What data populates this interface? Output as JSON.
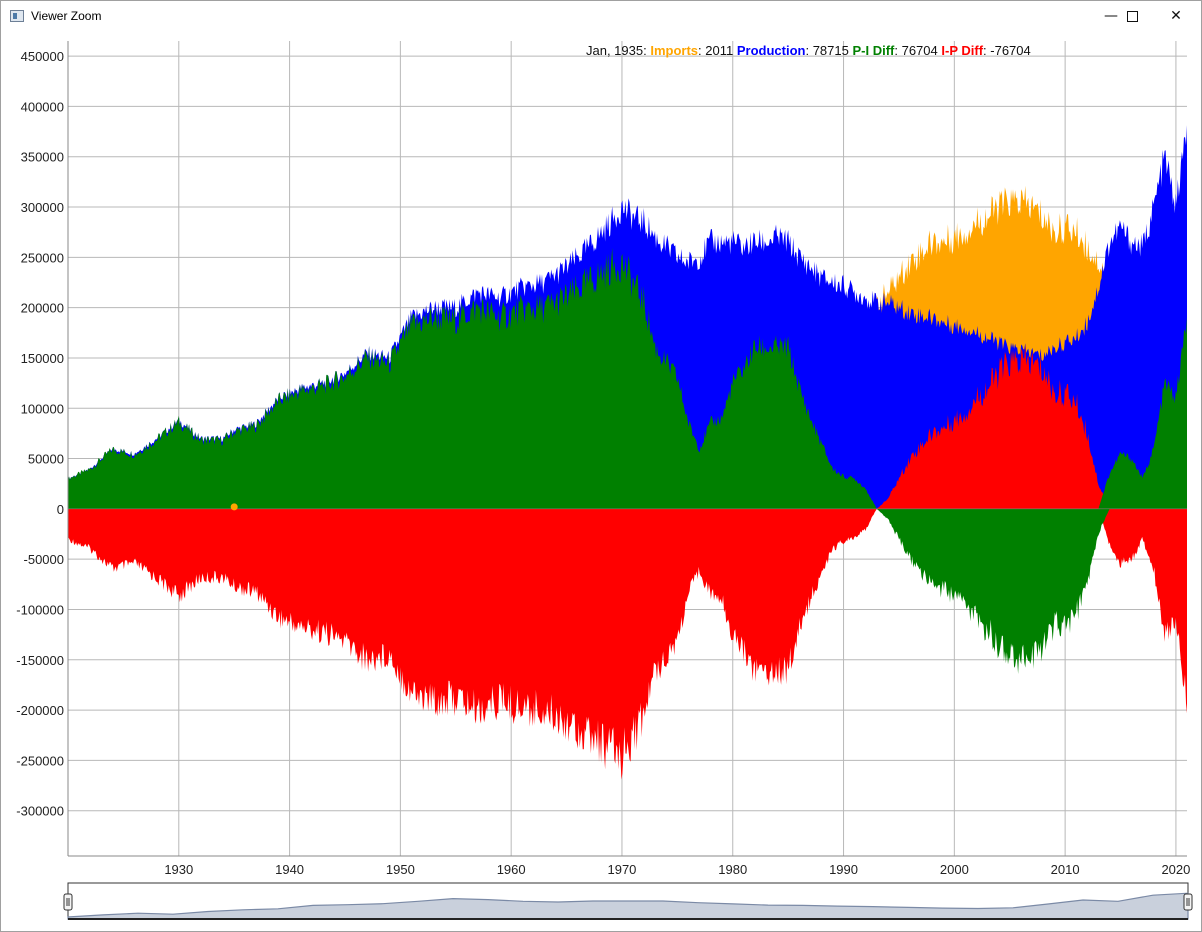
{
  "window": {
    "title": "Viewer Zoom"
  },
  "readout": {
    "date": "Jan, 1935",
    "imports_label": "Imports",
    "imports_value": "2011",
    "production_label": "Production",
    "production_value": "78715",
    "pi_label": "P-I Diff",
    "pi_value": "76704",
    "ip_label": "I-P Diff",
    "ip_value": "-76704"
  },
  "colors": {
    "imports": "#ffa500",
    "production": "#0000ff",
    "pi_diff": "#008000",
    "ip_diff": "#ff0000",
    "grid": "#b8b8b8",
    "overview_fill": "#c9d0dc",
    "overview_line": "#7b8aa6"
  },
  "chart_data": {
    "type": "area",
    "title": "",
    "xlabel": "",
    "ylabel": "",
    "xlim": [
      1920,
      2021
    ],
    "ylim": [
      -345000,
      465000
    ],
    "y_ticks": [
      450000,
      400000,
      350000,
      300000,
      250000,
      200000,
      150000,
      100000,
      50000,
      0,
      -50000,
      -100000,
      -150000,
      -200000,
      -250000,
      -300000
    ],
    "x_ticks": [
      1930,
      1940,
      1950,
      1960,
      1970,
      1980,
      1990,
      2000,
      2010,
      2020
    ],
    "grid": true,
    "x": [
      1920,
      1922,
      1924,
      1926,
      1928,
      1930,
      1932,
      1934,
      1935,
      1937,
      1939,
      1941,
      1943,
      1945,
      1947,
      1949,
      1951,
      1953,
      1955,
      1957,
      1959,
      1961,
      1963,
      1965,
      1967,
      1969,
      1970,
      1971,
      1972,
      1973,
      1974,
      1975,
      1976,
      1977,
      1978,
      1979,
      1980,
      1981,
      1982,
      1983,
      1984,
      1985,
      1986,
      1987,
      1988,
      1989,
      1990,
      1991,
      1992,
      1993,
      1994,
      1995,
      1996,
      1997,
      1998,
      1999,
      2000,
      2001,
      2002,
      2003,
      2004,
      2005,
      2006,
      2007,
      2008,
      2009,
      2010,
      2011,
      2012,
      2013,
      2014,
      2015,
      2016,
      2017,
      2018,
      2019,
      2020,
      2021
    ],
    "series": [
      {
        "name": "Imports",
        "values": [
          0,
          500,
          800,
          1000,
          1200,
          1500,
          1700,
          1900,
          2011,
          2300,
          2600,
          2800,
          3000,
          3500,
          4500,
          6000,
          8000,
          10000,
          12000,
          15000,
          20000,
          22000,
          25000,
          30000,
          35000,
          45000,
          55000,
          65000,
          80000,
          110000,
          115000,
          120000,
          160000,
          190000,
          180000,
          175000,
          140000,
          120000,
          105000,
          105000,
          110000,
          105000,
          130000,
          150000,
          165000,
          185000,
          190000,
          185000,
          190000,
          205000,
          215000,
          230000,
          245000,
          255000,
          265000,
          265000,
          270000,
          275000,
          285000,
          290000,
          300000,
          305000,
          305000,
          300000,
          290000,
          275000,
          280000,
          275000,
          260000,
          245000,
          230000,
          225000,
          215000,
          230000,
          240000,
          225000,
          190000,
          190000
        ]
      },
      {
        "name": "Production",
        "values": [
          30000,
          40000,
          60000,
          55000,
          70000,
          88000,
          70000,
          70000,
          78715,
          85000,
          110000,
          120000,
          125000,
          135000,
          155000,
          150000,
          190000,
          200000,
          200000,
          215000,
          210000,
          220000,
          225000,
          240000,
          260000,
          285000,
          300000,
          290000,
          285000,
          270000,
          260000,
          250000,
          245000,
          250000,
          265000,
          265000,
          265000,
          260000,
          265000,
          265000,
          270000,
          265000,
          250000,
          240000,
          230000,
          225000,
          222000,
          215000,
          210000,
          205000,
          205000,
          200000,
          195000,
          192000,
          190000,
          185000,
          182000,
          180000,
          175000,
          170000,
          165000,
          160000,
          158000,
          155000,
          152000,
          160000,
          165000,
          170000,
          185000,
          220000,
          265000,
          280000,
          265000,
          260000,
          300000,
          350000,
          300000,
          380000
        ]
      },
      {
        "name": "P-I Diff",
        "values": [
          30000,
          39500,
          59200,
          54000,
          68800,
          86500,
          68300,
          68100,
          76704,
          82700,
          107400,
          117200,
          122000,
          131500,
          150500,
          144000,
          182000,
          190000,
          188000,
          200000,
          190000,
          198000,
          200000,
          210000,
          225000,
          240000,
          245000,
          225000,
          205000,
          160000,
          145000,
          130000,
          85000,
          60000,
          85000,
          90000,
          125000,
          140000,
          160000,
          160000,
          160000,
          160000,
          120000,
          90000,
          65000,
          40000,
          32000,
          30000,
          20000,
          0,
          -10000,
          -30000,
          -50000,
          -63000,
          -75000,
          -80000,
          -88000,
          -95000,
          -110000,
          -120000,
          -135000,
          -145000,
          -147000,
          -145000,
          -138000,
          -115000,
          -115000,
          -105000,
          -75000,
          -25000,
          35000,
          55000,
          50000,
          30000,
          60000,
          125000,
          110000,
          190000
        ]
      }
    ],
    "derived": {
      "name": "I-P Diff",
      "rule": "negative of P-I Diff"
    },
    "marker": {
      "x": 1935,
      "y": 2011
    }
  },
  "overview": {
    "from": 1920,
    "to": 2021,
    "values": [
      30000,
      60000,
      85000,
      70000,
      110000,
      135000,
      150000,
      200000,
      210000,
      225000,
      260000,
      300000,
      285000,
      260000,
      250000,
      265000,
      265000,
      265000,
      240000,
      222000,
      205000,
      200000,
      190000,
      182000,
      170000,
      160000,
      155000,
      165000,
      220000,
      280000,
      260000,
      350000,
      380000
    ]
  }
}
